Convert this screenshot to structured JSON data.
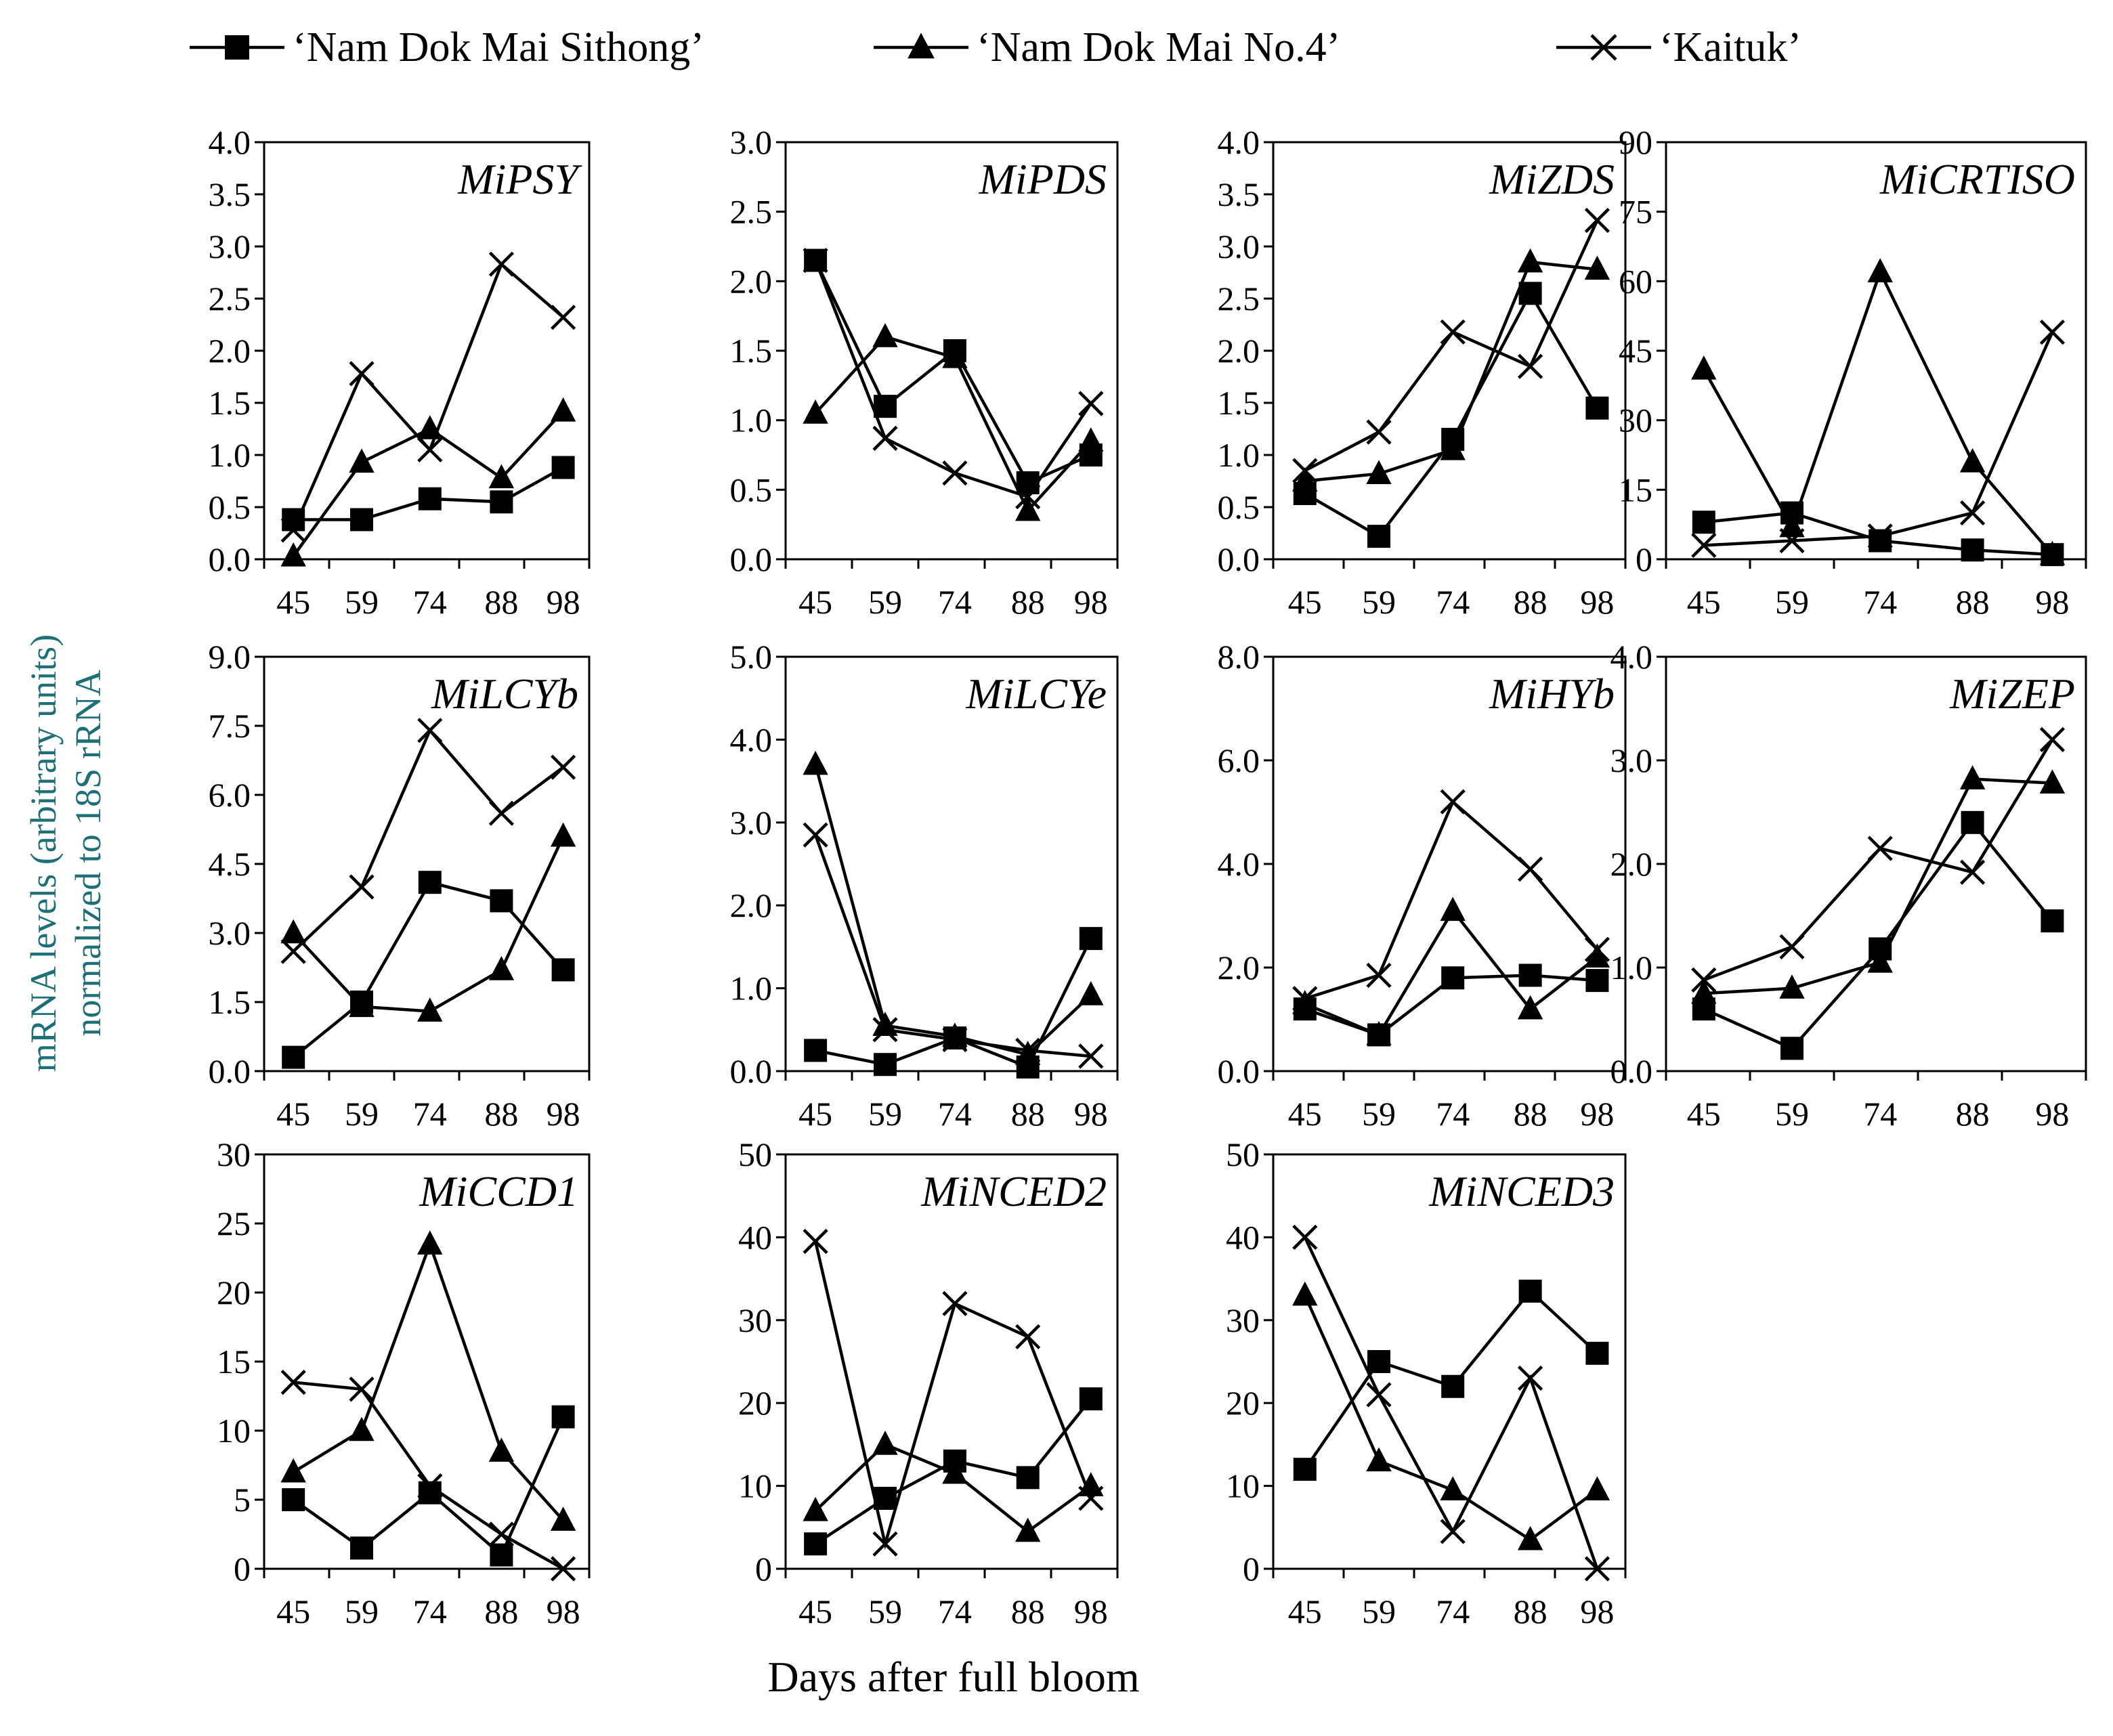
{
  "legend": [
    {
      "label": "‘Nam Dok Mai Sithong’",
      "marker": "square"
    },
    {
      "label": "‘Nam Dok Mai No.4’",
      "marker": "triangle"
    },
    {
      "label": "‘Kaituk’",
      "marker": "cross"
    }
  ],
  "ylabel_lines": [
    "mRNA levels (arbitrary units)",
    "normalized to 18S rRNA"
  ],
  "xlabel": "Days after full bloom",
  "chart_data": [
    {
      "type": "line",
      "title": "MiPSY",
      "categories": [
        "45",
        "59",
        "74",
        "88",
        "98"
      ],
      "ylim": [
        0,
        4
      ],
      "yticks": [
        "0.0",
        "0.5",
        "1.0",
        "1.5",
        "2.0",
        "2.5",
        "3.0",
        "3.5",
        "4.0"
      ],
      "series": [
        {
          "name": "Nam Dok Mai Sithong",
          "values": [
            0.38,
            0.38,
            0.58,
            0.55,
            0.88
          ]
        },
        {
          "name": "Nam Dok Mai No.4",
          "values": [
            0.03,
            0.93,
            1.25,
            0.78,
            1.42
          ]
        },
        {
          "name": "Kaituk",
          "values": [
            0.28,
            1.78,
            1.05,
            2.83,
            2.32
          ]
        }
      ]
    },
    {
      "type": "line",
      "title": "MiPDS",
      "categories": [
        "45",
        "59",
        "74",
        "88",
        "98"
      ],
      "ylim": [
        0,
        3
      ],
      "yticks": [
        "0.0",
        "0.5",
        "1.0",
        "1.5",
        "2.0",
        "2.5",
        "3.0"
      ],
      "series": [
        {
          "name": "Nam Dok Mai Sithong",
          "values": [
            2.15,
            1.1,
            1.5,
            0.55,
            0.75
          ]
        },
        {
          "name": "Nam Dok Mai No.4",
          "values": [
            1.05,
            1.6,
            1.45,
            0.35,
            0.85
          ]
        },
        {
          "name": "Kaituk",
          "values": [
            2.15,
            0.87,
            0.62,
            0.45,
            1.12
          ]
        }
      ]
    },
    {
      "type": "line",
      "title": "MiZDS",
      "categories": [
        "45",
        "59",
        "74",
        "88",
        "98"
      ],
      "ylim": [
        0,
        4
      ],
      "yticks": [
        "0.0",
        "0.5",
        "1.0",
        "1.5",
        "2.0",
        "2.5",
        "3.0",
        "3.5",
        "4.0"
      ],
      "series": [
        {
          "name": "Nam Dok Mai Sithong",
          "values": [
            0.63,
            0.22,
            1.15,
            2.55,
            1.45
          ]
        },
        {
          "name": "Nam Dok Mai No.4",
          "values": [
            0.75,
            0.82,
            1.05,
            2.85,
            2.78
          ]
        },
        {
          "name": "Kaituk",
          "values": [
            0.85,
            1.22,
            2.18,
            1.85,
            3.25
          ]
        }
      ]
    },
    {
      "type": "line",
      "title": "MiCRTISO",
      "categories": [
        "45",
        "59",
        "74",
        "88",
        "98"
      ],
      "ylim": [
        0,
        90
      ],
      "yticks": [
        "0",
        "15",
        "30",
        "45",
        "60",
        "75",
        "90"
      ],
      "series": [
        {
          "name": "Nam Dok Mai Sithong",
          "values": [
            8,
            10,
            4,
            2,
            1
          ]
        },
        {
          "name": "Nam Dok Mai No.4",
          "values": [
            41,
            7,
            62,
            21,
            1
          ]
        },
        {
          "name": "Kaituk",
          "values": [
            3,
            4,
            5,
            10,
            49
          ]
        }
      ]
    },
    {
      "type": "line",
      "title": "MiLCYb",
      "categories": [
        "45",
        "59",
        "74",
        "88",
        "98"
      ],
      "ylim": [
        0,
        9
      ],
      "yticks": [
        "0.0",
        "1.5",
        "3.0",
        "4.5",
        "6.0",
        "7.5",
        "9.0"
      ],
      "series": [
        {
          "name": "Nam Dok Mai Sithong",
          "values": [
            0.3,
            1.5,
            4.1,
            3.7,
            2.2
          ]
        },
        {
          "name": "Nam Dok Mai No.4",
          "values": [
            3.0,
            1.4,
            1.3,
            2.2,
            5.1
          ]
        },
        {
          "name": "Kaituk",
          "values": [
            2.6,
            4.0,
            7.4,
            5.6,
            6.6
          ]
        }
      ]
    },
    {
      "type": "line",
      "title": "MiLCYe",
      "categories": [
        "45",
        "59",
        "74",
        "88",
        "98"
      ],
      "ylim": [
        0,
        5
      ],
      "yticks": [
        "0.0",
        "1.0",
        "2.0",
        "3.0",
        "4.0",
        "5.0"
      ],
      "series": [
        {
          "name": "Nam Dok Mai Sithong",
          "values": [
            0.25,
            0.08,
            0.4,
            0.05,
            1.6
          ]
        },
        {
          "name": "Nam Dok Mai No.4",
          "values": [
            3.7,
            0.55,
            0.42,
            0.2,
            0.92
          ]
        },
        {
          "name": "Kaituk",
          "values": [
            2.85,
            0.5,
            0.38,
            0.25,
            0.18
          ]
        }
      ]
    },
    {
      "type": "line",
      "title": "MiHYb",
      "categories": [
        "45",
        "59",
        "74",
        "88",
        "98"
      ],
      "ylim": [
        0,
        8
      ],
      "yticks": [
        "0.0",
        "2.0",
        "4.0",
        "6.0",
        "8.0"
      ],
      "series": [
        {
          "name": "Nam Dok Mai Sithong",
          "values": [
            1.2,
            0.7,
            1.8,
            1.85,
            1.75
          ]
        },
        {
          "name": "Nam Dok Mai No.4",
          "values": [
            1.3,
            0.7,
            3.1,
            1.2,
            2.2
          ]
        },
        {
          "name": "Kaituk",
          "values": [
            1.4,
            1.85,
            5.2,
            3.9,
            2.35
          ]
        }
      ]
    },
    {
      "type": "line",
      "title": "MiZEP",
      "categories": [
        "45",
        "59",
        "74",
        "88",
        "98"
      ],
      "ylim": [
        0,
        4
      ],
      "yticks": [
        "0.0",
        "1.0",
        "2.0",
        "3.0",
        "4.0"
      ],
      "series": [
        {
          "name": "Nam Dok Mai Sithong",
          "values": [
            0.6,
            0.22,
            1.18,
            2.4,
            1.45
          ]
        },
        {
          "name": "Nam Dok Mai No.4",
          "values": [
            0.75,
            0.8,
            1.05,
            2.82,
            2.78
          ]
        },
        {
          "name": "Kaituk",
          "values": [
            0.88,
            1.2,
            2.15,
            1.92,
            3.2
          ]
        }
      ]
    },
    {
      "type": "line",
      "title": "MiCCD1",
      "categories": [
        "45",
        "59",
        "74",
        "88",
        "98"
      ],
      "ylim": [
        0,
        30
      ],
      "yticks": [
        "0",
        "5",
        "10",
        "15",
        "20",
        "25",
        "30"
      ],
      "series": [
        {
          "name": "Nam Dok Mai Sithong",
          "values": [
            5,
            1.5,
            5.5,
            1,
            11
          ]
        },
        {
          "name": "Nam Dok Mai No.4",
          "values": [
            7,
            10,
            23.5,
            8.5,
            3.5
          ]
        },
        {
          "name": "Kaituk",
          "values": [
            13.5,
            13,
            6,
            2.5,
            0
          ]
        }
      ]
    },
    {
      "type": "line",
      "title": "MiNCED2",
      "categories": [
        "45",
        "59",
        "74",
        "88",
        "98"
      ],
      "ylim": [
        0,
        50
      ],
      "yticks": [
        "0",
        "10",
        "20",
        "30",
        "40",
        "50"
      ],
      "series": [
        {
          "name": "Nam Dok Mai Sithong",
          "values": [
            3,
            8.5,
            13,
            11,
            20.5
          ]
        },
        {
          "name": "Nam Dok Mai No.4",
          "values": [
            7,
            15,
            11.5,
            4.5,
            10
          ]
        },
        {
          "name": "Kaituk",
          "values": [
            39.5,
            3,
            32,
            28,
            8.5
          ]
        }
      ]
    },
    {
      "type": "line",
      "title": "MiNCED3",
      "categories": [
        "45",
        "59",
        "74",
        "88",
        "98"
      ],
      "ylim": [
        0,
        50
      ],
      "yticks": [
        "0",
        "10",
        "20",
        "30",
        "40",
        "50"
      ],
      "series": [
        {
          "name": "Nam Dok Mai Sithong",
          "values": [
            12,
            25,
            22,
            33.5,
            26
          ]
        },
        {
          "name": "Nam Dok Mai No.4",
          "values": [
            33,
            13,
            9.5,
            3.5,
            9.5
          ]
        },
        {
          "name": "Kaituk",
          "values": [
            40,
            21,
            4.5,
            23,
            0
          ]
        }
      ]
    }
  ]
}
